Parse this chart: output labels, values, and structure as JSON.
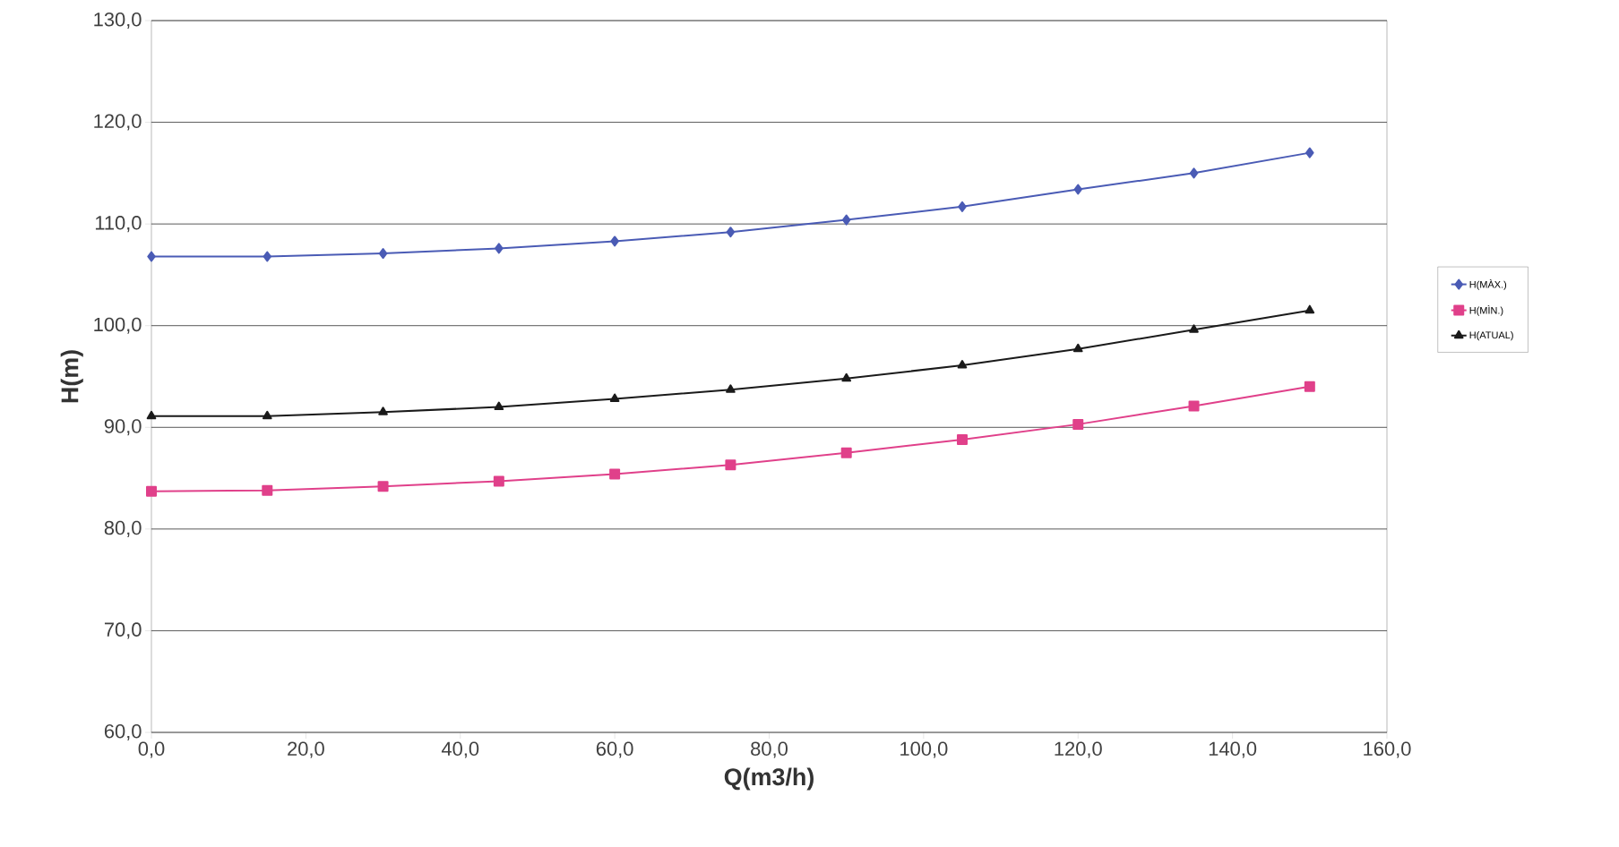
{
  "chart_data": {
    "type": "line",
    "xlabel": "Q(m3/h)",
    "ylabel": "H(m)",
    "x": [
      0,
      15,
      30,
      45,
      60,
      75,
      90,
      105,
      120,
      135,
      150
    ],
    "series": [
      {
        "name": "H(MÀX.)",
        "color": "#4a5bb5",
        "marker": "diamond",
        "values": [
          106.8,
          106.8,
          107.1,
          107.6,
          108.3,
          109.2,
          110.4,
          111.7,
          113.4,
          115.0,
          117.0
        ]
      },
      {
        "name": "H(MÌN.)",
        "color": "#e0408a",
        "marker": "square",
        "values": [
          83.7,
          83.8,
          84.2,
          84.7,
          85.4,
          86.3,
          87.5,
          88.8,
          90.3,
          92.1,
          94.0
        ]
      },
      {
        "name": "H(ATUAL)",
        "color": "#1a1a1a",
        "marker": "triangle",
        "values": [
          91.1,
          91.1,
          91.5,
          92.0,
          92.8,
          93.7,
          94.8,
          96.1,
          97.7,
          99.6,
          101.5
        ]
      }
    ],
    "xlim": [
      0,
      160
    ],
    "ylim": [
      60,
      130
    ],
    "xticks": [
      {
        "value": 0,
        "label": "0,0"
      },
      {
        "value": 20,
        "label": "20,0"
      },
      {
        "value": 40,
        "label": "40,0"
      },
      {
        "value": 60,
        "label": "60,0"
      },
      {
        "value": 80,
        "label": "80,0"
      },
      {
        "value": 100,
        "label": "100,0"
      },
      {
        "value": 120,
        "label": "120,0"
      },
      {
        "value": 140,
        "label": "140,0"
      },
      {
        "value": 160,
        "label": "160,0"
      }
    ],
    "yticks": [
      {
        "value": 60,
        "label": "60,0"
      },
      {
        "value": 70,
        "label": "70,0"
      },
      {
        "value": 80,
        "label": "80,0"
      },
      {
        "value": 90,
        "label": "90,0"
      },
      {
        "value": 100,
        "label": "100,0"
      },
      {
        "value": 110,
        "label": "110,0"
      },
      {
        "value": 120,
        "label": "120,0"
      },
      {
        "value": 130,
        "label": "130,0"
      }
    ],
    "grid": "y",
    "legend": "right"
  }
}
